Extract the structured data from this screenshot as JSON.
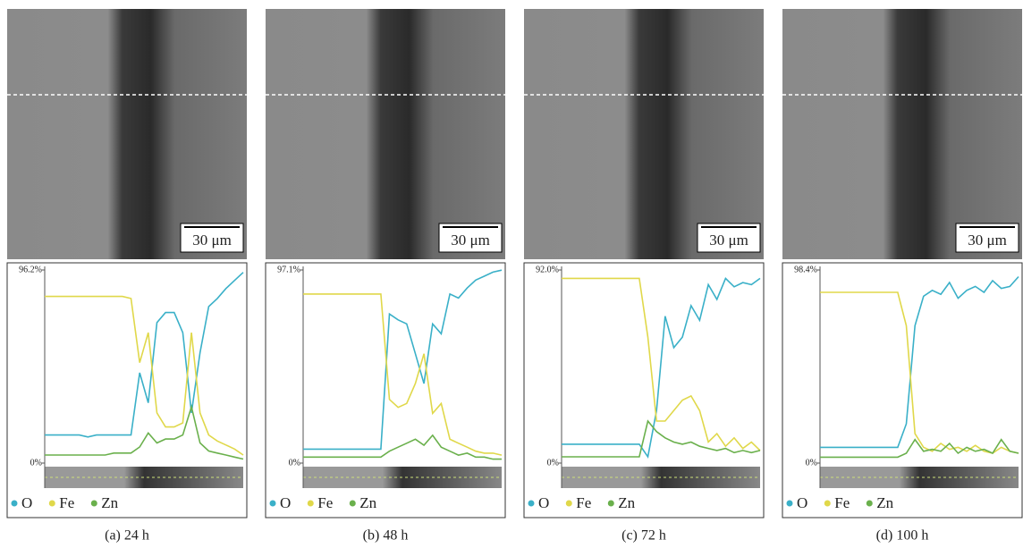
{
  "chart_data": [
    {
      "type": "line",
      "caption": "(a) 24 h",
      "scale_bar": "30 μm",
      "ylim": [
        0,
        96.2
      ],
      "yticks": [
        {
          "value": 96.2,
          "label": "96.2%"
        },
        {
          "value": 0,
          "label": "0%"
        }
      ],
      "series": [
        {
          "name": "O",
          "color": "#3ab0c8",
          "values": [
            14,
            14,
            14,
            14,
            14,
            13,
            14,
            14,
            14,
            14,
            14,
            45,
            30,
            70,
            75,
            75,
            65,
            25,
            55,
            78,
            82,
            87,
            91,
            95
          ]
        },
        {
          "name": "Fe",
          "color": "#e0d84a",
          "values": [
            83,
            83,
            83,
            83,
            83,
            83,
            83,
            83,
            83,
            83,
            82,
            50,
            65,
            25,
            18,
            18,
            20,
            65,
            25,
            14,
            11,
            9,
            7,
            4
          ]
        },
        {
          "name": "Zn",
          "color": "#6ab04c",
          "values": [
            4,
            4,
            4,
            4,
            4,
            4,
            4,
            4,
            5,
            5,
            5,
            8,
            15,
            10,
            12,
            12,
            14,
            28,
            10,
            6,
            5,
            4,
            3,
            2
          ]
        }
      ]
    },
    {
      "type": "line",
      "caption": "(b) 48 h",
      "scale_bar": "30 μm",
      "ylim": [
        0,
        97.1
      ],
      "yticks": [
        {
          "value": 97.1,
          "label": "97.1%"
        },
        {
          "value": 0,
          "label": "0%"
        }
      ],
      "series": [
        {
          "name": "O",
          "color": "#3ab0c8",
          "values": [
            7,
            7,
            7,
            7,
            7,
            7,
            7,
            7,
            7,
            7,
            75,
            72,
            70,
            55,
            40,
            70,
            65,
            85,
            83,
            88,
            92,
            94,
            96,
            97
          ]
        },
        {
          "name": "Fe",
          "color": "#e0d84a",
          "values": [
            85,
            85,
            85,
            85,
            85,
            85,
            85,
            85,
            85,
            85,
            32,
            28,
            30,
            40,
            55,
            25,
            30,
            12,
            10,
            8,
            6,
            5,
            5,
            4
          ]
        },
        {
          "name": "Zn",
          "color": "#6ab04c",
          "values": [
            3,
            3,
            3,
            3,
            3,
            3,
            3,
            3,
            3,
            3,
            6,
            8,
            10,
            12,
            9,
            14,
            8,
            6,
            4,
            5,
            3,
            3,
            2,
            2
          ]
        }
      ]
    },
    {
      "type": "line",
      "caption": "(c) 72 h",
      "scale_bar": "30 μm",
      "ylim": [
        0,
        92.0
      ],
      "yticks": [
        {
          "value": 92.0,
          "label": "92.0%"
        },
        {
          "value": 0,
          "label": "0%"
        }
      ],
      "series": [
        {
          "name": "O",
          "color": "#3ab0c8",
          "values": [
            9,
            9,
            9,
            9,
            9,
            9,
            9,
            9,
            9,
            9,
            3,
            25,
            70,
            55,
            60,
            75,
            68,
            85,
            78,
            88,
            84,
            86,
            85,
            88
          ]
        },
        {
          "name": "Fe",
          "color": "#e0d84a",
          "values": [
            88,
            88,
            88,
            88,
            88,
            88,
            88,
            88,
            88,
            88,
            60,
            20,
            20,
            25,
            30,
            32,
            25,
            10,
            14,
            8,
            12,
            7,
            10,
            6
          ]
        },
        {
          "name": "Zn",
          "color": "#6ab04c",
          "values": [
            3,
            3,
            3,
            3,
            3,
            3,
            3,
            3,
            3,
            3,
            20,
            15,
            12,
            10,
            9,
            10,
            8,
            7,
            6,
            7,
            5,
            6,
            5,
            6
          ]
        }
      ]
    },
    {
      "type": "line",
      "caption": "(d) 100 h",
      "scale_bar": "30 μm",
      "ylim": [
        0,
        98.4
      ],
      "yticks": [
        {
          "value": 98.4,
          "label": "98.4%"
        },
        {
          "value": 0,
          "label": "0%"
        }
      ],
      "series": [
        {
          "name": "O",
          "color": "#3ab0c8",
          "values": [
            8,
            8,
            8,
            8,
            8,
            8,
            8,
            8,
            8,
            8,
            20,
            70,
            85,
            88,
            86,
            92,
            84,
            88,
            90,
            87,
            93,
            89,
            90,
            95
          ]
        },
        {
          "name": "Fe",
          "color": "#e0d84a",
          "values": [
            87,
            87,
            87,
            87,
            87,
            87,
            87,
            87,
            87,
            87,
            70,
            15,
            8,
            6,
            10,
            7,
            8,
            6,
            9,
            6,
            5,
            8,
            6,
            5
          ]
        },
        {
          "name": "Zn",
          "color": "#6ab04c",
          "values": [
            3,
            3,
            3,
            3,
            3,
            3,
            3,
            3,
            3,
            3,
            5,
            12,
            6,
            7,
            6,
            10,
            5,
            8,
            6,
            7,
            5,
            12,
            6,
            5
          ]
        }
      ]
    }
  ]
}
